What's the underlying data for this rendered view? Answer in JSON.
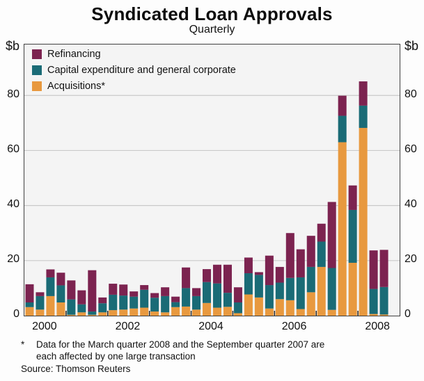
{
  "title": "Syndicated Loan Approvals",
  "subtitle": "Quarterly",
  "footnote": {
    "marker": "*",
    "line1": "Data for the March quarter 2008 and the September quarter 2007 are",
    "line2": "each affected by one large transaction"
  },
  "source": "Source: Thomson Reuters",
  "chart_data": {
    "type": "bar",
    "stacked": true,
    "title": "Syndicated Loan Approvals",
    "subtitle": "Quarterly",
    "ylabel": "$b",
    "unit_label": "$b",
    "ylim": [
      0,
      98.5
    ],
    "yticks": [
      0,
      20,
      40,
      60,
      80
    ],
    "grid": true,
    "legend_position": "top-left-inside",
    "year_labels": [
      "2000",
      "2002",
      "2004",
      "2006",
      "2008"
    ],
    "categories": [
      "2000Q1",
      "2000Q2",
      "2000Q3",
      "2000Q4",
      "2001Q1",
      "2001Q2",
      "2001Q3",
      "2001Q4",
      "2002Q1",
      "2002Q2",
      "2002Q3",
      "2002Q4",
      "2003Q1",
      "2003Q2",
      "2003Q3",
      "2003Q4",
      "2004Q1",
      "2004Q2",
      "2004Q3",
      "2004Q4",
      "2005Q1",
      "2005Q2",
      "2005Q3",
      "2005Q4",
      "2006Q1",
      "2006Q2",
      "2006Q3",
      "2006Q4",
      "2007Q1",
      "2007Q2",
      "2007Q3",
      "2007Q4",
      "2008Q1",
      "2008Q2",
      "2008Q3"
    ],
    "series": [
      {
        "name": "Refinancing",
        "color": "#7c2350",
        "values": [
          6.6,
          1.4,
          2.9,
          4.6,
          6.9,
          5.1,
          15.0,
          2.1,
          4.0,
          4.0,
          1.9,
          1.7,
          1.7,
          3.2,
          2.0,
          7.5,
          2.9,
          4.7,
          6.8,
          10.2,
          5.5,
          5.7,
          1.0,
          10.7,
          5.7,
          16.3,
          10.2,
          11.3,
          6.5,
          24.0,
          7.3,
          8.9,
          8.8,
          14.0,
          13.5
        ]
      },
      {
        "name": "Capital expenditure and general corporate",
        "color": "#1a6b76",
        "values": [
          1.7,
          4.9,
          6.8,
          6.2,
          5.6,
          2.9,
          1.2,
          3.3,
          5.6,
          5.1,
          4.3,
          6.5,
          5.0,
          5.9,
          1.8,
          6.7,
          4.9,
          7.6,
          8.8,
          5.1,
          3.9,
          7.7,
          8.2,
          8.5,
          6.0,
          8.1,
          11.5,
          9.2,
          9.2,
          15.2,
          9.6,
          19.2,
          8.1,
          9.1,
          10.0
        ]
      },
      {
        "name": "Acquisitions*",
        "color": "#e8993f",
        "values": [
          3.1,
          2.2,
          7.1,
          4.8,
          0.3,
          1.2,
          0.3,
          1.2,
          2.0,
          2.2,
          2.6,
          2.9,
          1.5,
          1.2,
          3.1,
          3.3,
          2.2,
          4.6,
          2.9,
          3.2,
          0.9,
          7.7,
          6.6,
          2.6,
          6.0,
          5.6,
          2.4,
          8.5,
          17.7,
          2.1,
          63.0,
          19.2,
          68.2,
          0.6,
          0.4
        ]
      }
    ],
    "stack_order": "reverse-of-legend",
    "x_start_year": 2000,
    "colors": {
      "grid": "#c9c9c9",
      "frame": "#3f3f3f",
      "plot_bg": "#f4f4f4"
    }
  }
}
